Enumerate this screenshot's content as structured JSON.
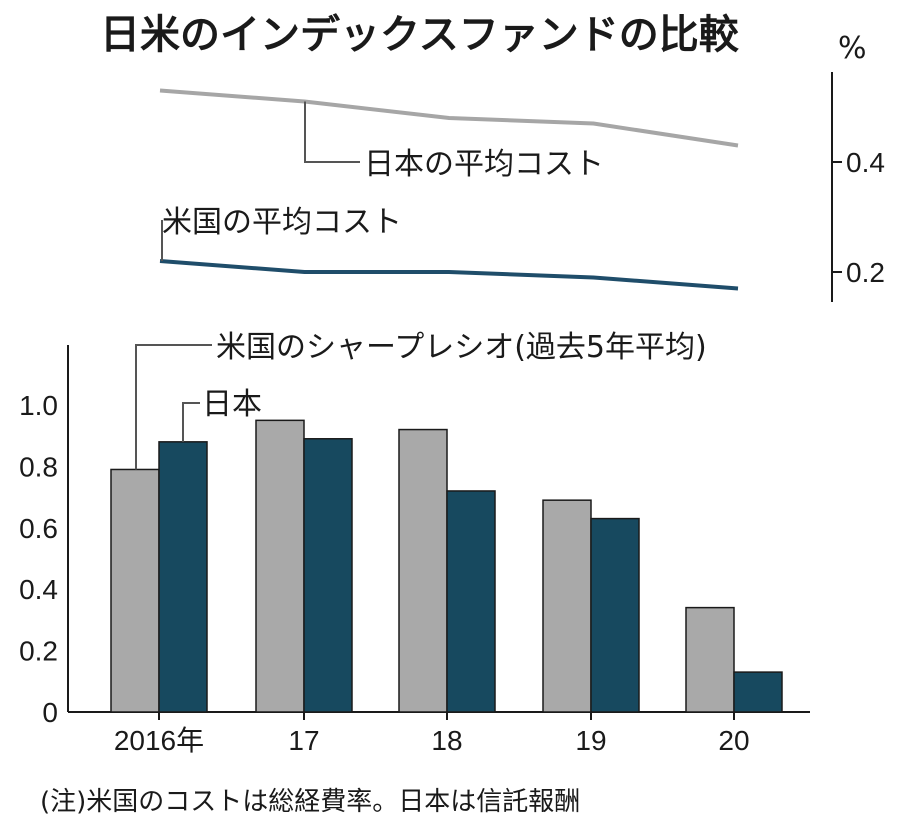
{
  "title": "日米のインデックスファンドの比較",
  "note": "(注)米国のコストは総経費率。日本は信託報酬",
  "colors": {
    "us_gray": "#a9a9a9",
    "japan_teal": "#17495f",
    "japan_cost_line": "#a6a6a6",
    "us_cost_line": "#1f4d6a"
  },
  "chart_data": [
    {
      "type": "line",
      "x": [
        "2016",
        "2017",
        "2018",
        "2019",
        "2020"
      ],
      "y_unit": "%",
      "yticks": [
        "0.2",
        "0.4"
      ],
      "ylim": [
        0.15,
        0.55
      ],
      "series": [
        {
          "name": "日本の平均コスト",
          "values": [
            0.53,
            0.51,
            0.48,
            0.47,
            0.43
          ]
        },
        {
          "name": "米国の平均コスト",
          "values": [
            0.22,
            0.2,
            0.2,
            0.19,
            0.17
          ]
        }
      ]
    },
    {
      "type": "bar",
      "categories": [
        "2016年",
        "17",
        "18",
        "19",
        "20"
      ],
      "yticks": [
        "0",
        "0.2",
        "0.4",
        "0.6",
        "0.8",
        "1.0"
      ],
      "ylim": [
        0,
        1.15
      ],
      "series": [
        {
          "name": "米国のシャープレシオ(過去5年平均)",
          "values": [
            0.79,
            0.95,
            0.92,
            0.69,
            0.34
          ]
        },
        {
          "name": "日本",
          "values": [
            0.88,
            0.89,
            0.72,
            0.63,
            0.13
          ]
        }
      ]
    }
  ]
}
